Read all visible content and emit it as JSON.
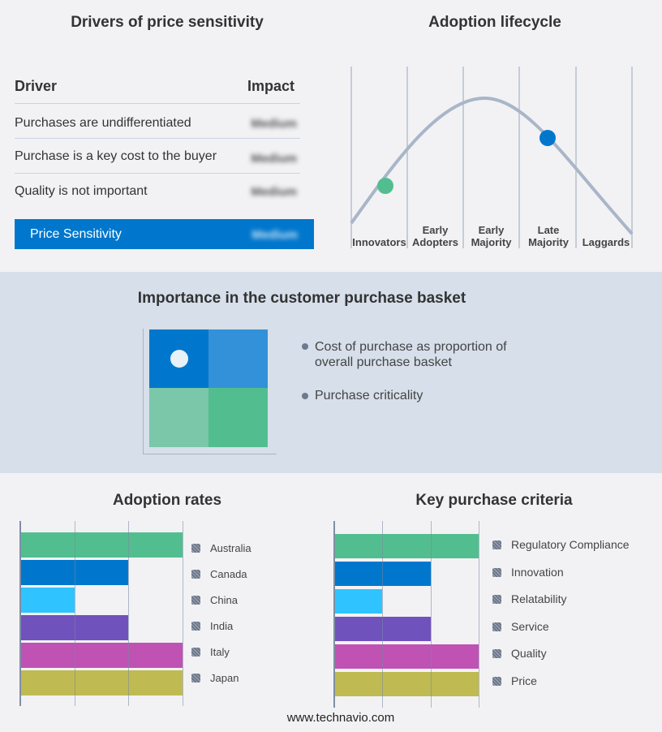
{
  "drivers": {
    "title": "Drivers of price sensitivity",
    "col_driver": "Driver",
    "col_impact": "Impact",
    "rows": [
      {
        "driver": "Purchases are undifferentiated",
        "impact": "Medium"
      },
      {
        "driver": "Purchase is a key cost to the buyer",
        "impact": "Medium"
      },
      {
        "driver": "Quality is not important",
        "impact": "Medium"
      }
    ],
    "summary": {
      "label": "Price Sensitivity",
      "impact": "Medium"
    },
    "accent": "#0077cc"
  },
  "lifecycle": {
    "title": "Adoption lifecycle",
    "stages": [
      [
        "Innovators"
      ],
      [
        "Early",
        "Adopters"
      ],
      [
        "Early",
        "Majority"
      ],
      [
        "Late",
        "Majority"
      ],
      [
        "Laggards"
      ]
    ],
    "markers": [
      {
        "stage": "Innovators",
        "color": "#52be8f"
      },
      {
        "stage": "Late Majority",
        "color": "#0077cc"
      }
    ]
  },
  "basket": {
    "title": "Importance in the customer purchase basket",
    "legend": [
      "Cost of purchase as proportion of overall purchase basket",
      "Purchase criticality"
    ],
    "quadrant_colors": [
      "#0077cc",
      "#3391d9",
      "#7ac7a9",
      "#52be8f"
    ]
  },
  "chart_data": [
    {
      "type": "bar",
      "title": "Adoption rates",
      "categories": [
        "Australia",
        "Canada",
        "China",
        "India",
        "Italy",
        "Japan"
      ],
      "values": [
        3,
        2,
        1,
        2,
        3,
        3
      ],
      "xlim": [
        0,
        3
      ],
      "grid": true,
      "legend": "right",
      "colors": [
        "#52be8f",
        "#0077cc",
        "#2fc4ff",
        "#7052bd",
        "#bf52b3",
        "#bfba52"
      ]
    },
    {
      "type": "bar",
      "title": "Key purchase criteria",
      "categories": [
        "Regulatory Compliance",
        "Innovation",
        "Relatability",
        "Service",
        "Quality",
        "Price"
      ],
      "values": [
        3,
        2,
        1,
        2,
        3,
        3
      ],
      "xlim": [
        0,
        3
      ],
      "grid": true,
      "legend": "right",
      "colors": [
        "#52be8f",
        "#0077cc",
        "#2fc4ff",
        "#7052bd",
        "#bf52b3",
        "#bfba52"
      ]
    }
  ],
  "footer": {
    "url": "www.technavio.com"
  }
}
